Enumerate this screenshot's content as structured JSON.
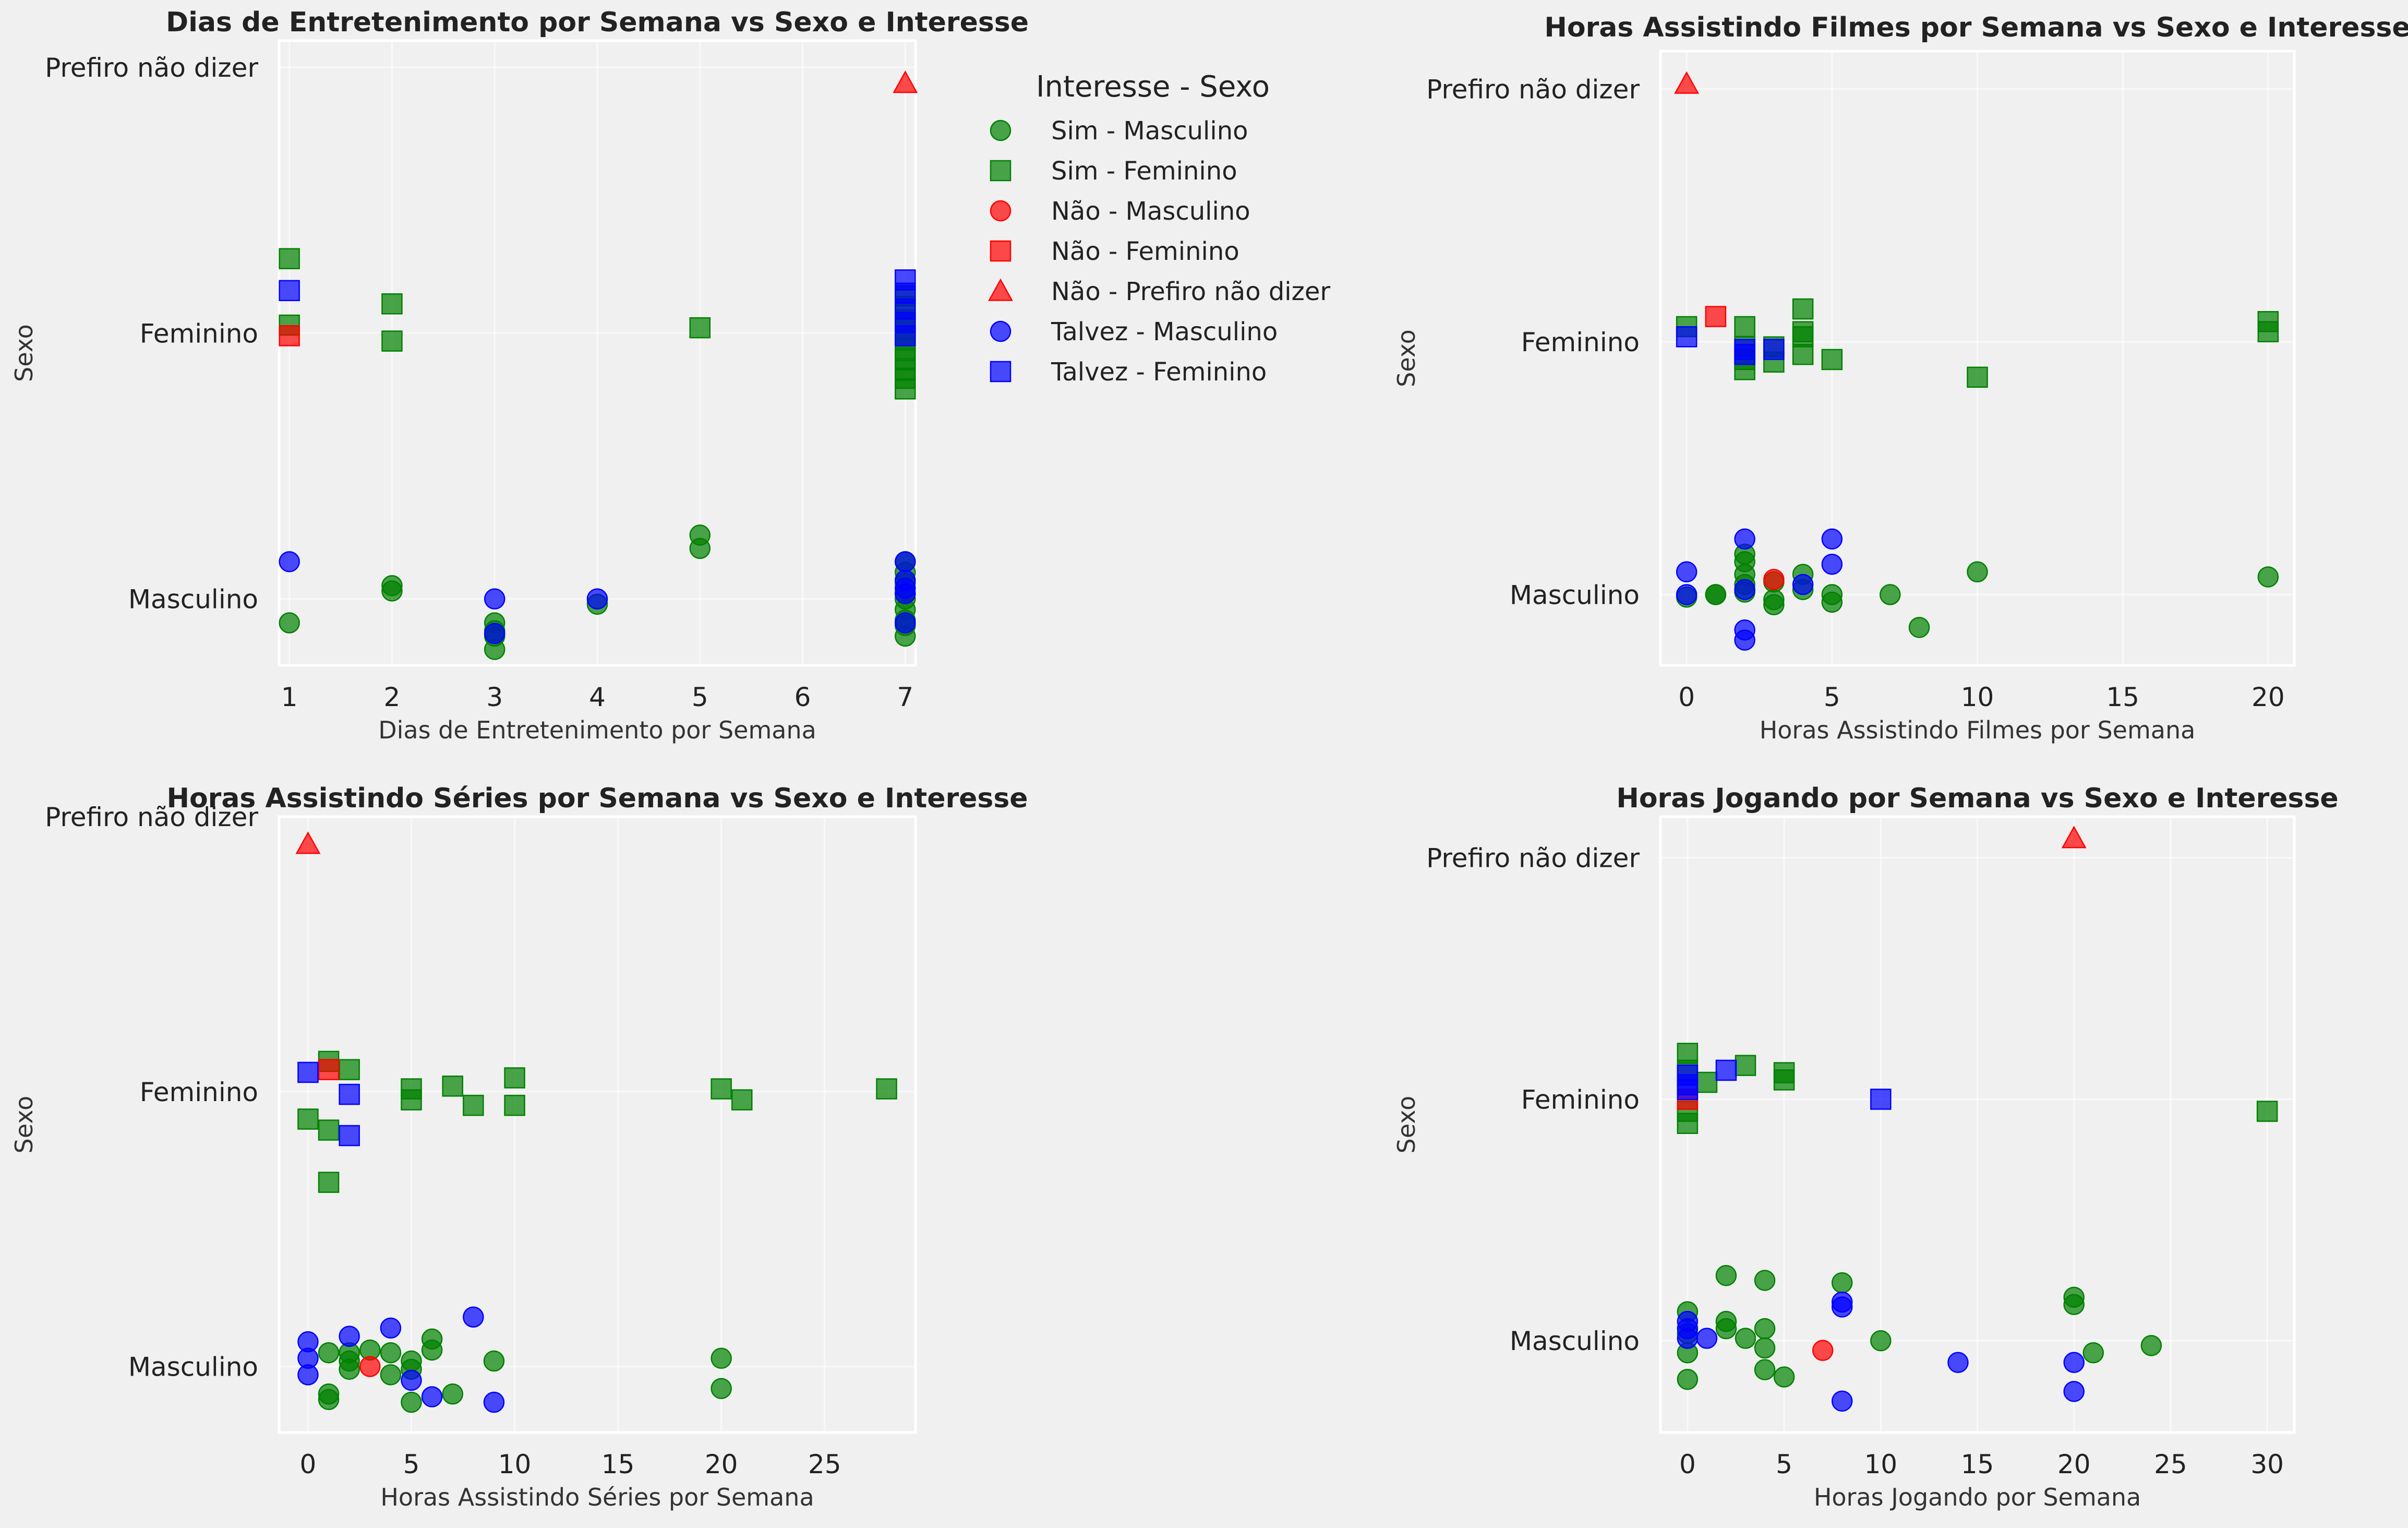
{
  "legend": {
    "title": "Interesse - Sexo",
    "entries": [
      {
        "label": "Sim - Masculino",
        "color": "#008000",
        "marker": "circle"
      },
      {
        "label": "Sim - Feminino",
        "color": "#008000",
        "marker": "square"
      },
      {
        "label": "Não - Masculino",
        "color": "#ff0000",
        "marker": "circle"
      },
      {
        "label": "Não - Feminino",
        "color": "#ff0000",
        "marker": "square"
      },
      {
        "label": "Não - Prefiro não dizer",
        "color": "#ff0000",
        "marker": "triangle"
      },
      {
        "label": "Talvez - Masculino",
        "color": "#0000ff",
        "marker": "circle"
      },
      {
        "label": "Talvez - Feminino",
        "color": "#0000ff",
        "marker": "square"
      }
    ]
  },
  "chart_data": [
    {
      "type": "scatter",
      "title": "Dias de Entretenimento por Semana vs Sexo e Interesse",
      "xlabel": "Dias de Entretenimento por Semana",
      "ylabel": "Sexo",
      "xlim": [
        0.9,
        7.1
      ],
      "xticks": [
        1,
        2,
        3,
        4,
        5,
        6,
        7
      ],
      "yticks": [
        "Masculino",
        "Feminino",
        "Prefiro não dizer"
      ],
      "ylim": [
        -0.25,
        2.1
      ],
      "grid": true,
      "legend_position": "outside-right",
      "series": [
        {
          "name": "Sim - Masculino",
          "points": [
            [
              1,
              -0.09
            ],
            [
              2,
              0.05
            ],
            [
              2,
              0.03
            ],
            [
              3,
              -0.09
            ],
            [
              3,
              -0.14
            ],
            [
              3,
              -0.19
            ],
            [
              3,
              -0.12
            ],
            [
              4,
              -0.02
            ],
            [
              5,
              0.24
            ],
            [
              5,
              0.19
            ],
            [
              7,
              0.14
            ],
            [
              7,
              0.1
            ],
            [
              7,
              0.06
            ],
            [
              7,
              0.02
            ],
            [
              7,
              0
            ],
            [
              7,
              -0.04
            ],
            [
              7,
              -0.08
            ],
            [
              7,
              -0.1
            ],
            [
              7,
              -0.14
            ]
          ]
        },
        {
          "name": "Sim - Feminino",
          "points": [
            [
              1,
              1.28
            ],
            [
              1,
              1.03
            ],
            [
              2,
              1.11
            ],
            [
              2,
              0.97
            ],
            [
              5,
              1.02
            ],
            [
              7,
              1.14
            ],
            [
              7,
              1.1
            ],
            [
              7,
              1.05
            ],
            [
              7,
              1.02
            ],
            [
              7,
              0.98
            ],
            [
              7,
              0.94
            ],
            [
              7,
              0.9
            ],
            [
              7,
              0.86
            ],
            [
              7,
              0.83
            ],
            [
              7,
              0.79
            ]
          ]
        },
        {
          "name": "Não - Masculino",
          "points": []
        },
        {
          "name": "Não - Feminino",
          "points": [
            [
              1,
              0.99
            ]
          ]
        },
        {
          "name": "Não - Prefiro não dizer",
          "points": [
            [
              7,
              1.94
            ]
          ]
        },
        {
          "name": "Talvez - Masculino",
          "points": [
            [
              1,
              0.14
            ],
            [
              3,
              0
            ],
            [
              3,
              -0.13
            ],
            [
              4,
              0
            ],
            [
              7,
              0.14
            ],
            [
              7,
              0.07
            ],
            [
              7,
              0.04
            ],
            [
              7,
              0.02
            ],
            [
              7,
              -0.09
            ]
          ]
        },
        {
          "name": "Talvez - Feminino",
          "points": [
            [
              1,
              1.16
            ],
            [
              7,
              1.2
            ],
            [
              7,
              1.15
            ],
            [
              7,
              1.09
            ],
            [
              7,
              1.04
            ],
            [
              7,
              0.99
            ]
          ]
        }
      ]
    },
    {
      "type": "scatter",
      "title": "Horas Assistindo Filmes por Semana vs Sexo e Interesse",
      "xlabel": "Horas Assistindo Filmes por Semana",
      "ylabel": "Sexo",
      "xlim": [
        -0.9,
        20.9
      ],
      "xticks": [
        0,
        5,
        10,
        15,
        20
      ],
      "yticks": [
        "Masculino",
        "Feminino",
        "Prefiro não dizer"
      ],
      "ylim": [
        -0.28,
        2.15
      ],
      "grid": true,
      "series": [
        {
          "name": "Sim - Masculino",
          "points": [
            [
              0,
              -0.01
            ],
            [
              1,
              0
            ],
            [
              1,
              0
            ],
            [
              2,
              0.16
            ],
            [
              2,
              0.13
            ],
            [
              2,
              0.08
            ],
            [
              2,
              0.04
            ],
            [
              2,
              0.01
            ],
            [
              3,
              0.05
            ],
            [
              3,
              -0.02
            ],
            [
              3,
              -0.04
            ],
            [
              4,
              0.08
            ],
            [
              4,
              0.02
            ],
            [
              5,
              0
            ],
            [
              5,
              -0.03
            ],
            [
              7,
              0
            ],
            [
              8,
              -0.13
            ],
            [
              10,
              0.09
            ],
            [
              20,
              0.07
            ]
          ]
        },
        {
          "name": "Sim - Feminino",
          "points": [
            [
              0,
              1.06
            ],
            [
              2,
              1.06
            ],
            [
              2,
              0.98
            ],
            [
              2,
              0.93
            ],
            [
              2,
              0.89
            ],
            [
              3,
              0.98
            ],
            [
              3,
              0.92
            ],
            [
              4,
              1.13
            ],
            [
              4,
              1.04
            ],
            [
              4,
              1.02
            ],
            [
              4,
              0.95
            ],
            [
              5,
              0.93
            ],
            [
              10,
              0.86
            ],
            [
              20,
              1.08
            ],
            [
              20,
              1.04
            ]
          ]
        },
        {
          "name": "Não - Masculino",
          "points": [
            [
              3,
              0.06
            ]
          ]
        },
        {
          "name": "Não - Feminino",
          "points": [
            [
              1,
              1.1
            ]
          ]
        },
        {
          "name": "Não - Prefiro não dizer",
          "points": [
            [
              0,
              2.02
            ]
          ]
        },
        {
          "name": "Talvez - Masculino",
          "points": [
            [
              0,
              0.09
            ],
            [
              0,
              0
            ],
            [
              2,
              0.22
            ],
            [
              2,
              0.02
            ],
            [
              2,
              -0.14
            ],
            [
              2,
              -0.18
            ],
            [
              4,
              0.04
            ],
            [
              5,
              0.22
            ],
            [
              5,
              0.12
            ]
          ]
        },
        {
          "name": "Talvez - Feminino",
          "points": [
            [
              0,
              1.02
            ],
            [
              2,
              0.97
            ],
            [
              2,
              0.95
            ],
            [
              3,
              0.97
            ]
          ]
        }
      ]
    },
    {
      "type": "scatter",
      "title": "Horas Assistindo Séries por Semana vs Sexo e Interesse",
      "xlabel": "Horas Assistindo Séries por Semana",
      "ylabel": "Sexo",
      "xlim": [
        -1.4,
        29.4
      ],
      "xticks": [
        0,
        5,
        10,
        15,
        20,
        25
      ],
      "yticks": [
        "Masculino",
        "Feminino",
        "Prefiro não dizer"
      ],
      "ylim": [
        -0.24,
        2.0
      ],
      "grid": true,
      "series": [
        {
          "name": "Sim - Masculino",
          "points": [
            [
              1,
              0.05
            ],
            [
              1,
              -0.1
            ],
            [
              1,
              -0.12
            ],
            [
              2,
              0.05
            ],
            [
              2,
              0.02
            ],
            [
              2,
              -0.01
            ],
            [
              3,
              0.06
            ],
            [
              4,
              0.05
            ],
            [
              4,
              -0.03
            ],
            [
              5,
              0.02
            ],
            [
              5,
              -0.01
            ],
            [
              5,
              -0.13
            ],
            [
              6,
              0.06
            ],
            [
              6,
              0.1
            ],
            [
              7,
              -0.1
            ],
            [
              9,
              0.02
            ],
            [
              20,
              0.03
            ],
            [
              20,
              -0.08
            ]
          ]
        },
        {
          "name": "Sim - Feminino",
          "points": [
            [
              0,
              0.9
            ],
            [
              1,
              1.11
            ],
            [
              1,
              0.86
            ],
            [
              1,
              0.67
            ],
            [
              2,
              1.08
            ],
            [
              5,
              1.01
            ],
            [
              5,
              0.97
            ],
            [
              7,
              1.02
            ],
            [
              8,
              0.95
            ],
            [
              10,
              1.05
            ],
            [
              10,
              0.95
            ],
            [
              20,
              1.01
            ],
            [
              21,
              0.97
            ],
            [
              28,
              1.01
            ]
          ]
        },
        {
          "name": "Não - Masculino",
          "points": [
            [
              3,
              0
            ]
          ]
        },
        {
          "name": "Não - Feminino",
          "points": [
            [
              1,
              1.08
            ]
          ]
        },
        {
          "name": "Não - Prefiro não dizer",
          "points": [
            [
              0,
              1.9
            ]
          ]
        },
        {
          "name": "Talvez - Masculino",
          "points": [
            [
              0,
              0.09
            ],
            [
              0,
              0.03
            ],
            [
              0,
              -0.03
            ],
            [
              2,
              0.11
            ],
            [
              4,
              0.14
            ],
            [
              5,
              -0.05
            ],
            [
              6,
              -0.11
            ],
            [
              8,
              0.18
            ],
            [
              9,
              -0.13
            ]
          ]
        },
        {
          "name": "Talvez - Feminino",
          "points": [
            [
              0,
              1.07
            ],
            [
              2,
              0.99
            ],
            [
              2,
              0.84
            ]
          ]
        }
      ]
    },
    {
      "type": "scatter",
      "title": "Horas Jogando por Semana vs Sexo e Interesse",
      "xlabel": "Horas Jogando por Semana",
      "ylabel": "Sexo",
      "xlim": [
        -1.4,
        31.4
      ],
      "xticks": [
        0,
        5,
        10,
        15,
        20,
        25,
        30
      ],
      "yticks": [
        "Masculino",
        "Feminino",
        "Prefiro não dizer"
      ],
      "ylim": [
        -0.38,
        2.17
      ],
      "grid": true,
      "series": [
        {
          "name": "Sim - Masculino",
          "points": [
            [
              0,
              0.12
            ],
            [
              0,
              0.03
            ],
            [
              0,
              -0.05
            ],
            [
              0,
              -0.16
            ],
            [
              2,
              0.27
            ],
            [
              2,
              0.08
            ],
            [
              2,
              0.05
            ],
            [
              3,
              0.01
            ],
            [
              4,
              0.25
            ],
            [
              4,
              0.05
            ],
            [
              4,
              -0.03
            ],
            [
              4,
              -0.12
            ],
            [
              5,
              -0.15
            ],
            [
              8,
              0.24
            ],
            [
              10,
              0
            ],
            [
              20,
              0.18
            ],
            [
              20,
              0.15
            ],
            [
              21,
              -0.05
            ],
            [
              24,
              -0.02
            ]
          ]
        },
        {
          "name": "Sim - Feminino",
          "points": [
            [
              0,
              1.19
            ],
            [
              0,
              1.12
            ],
            [
              0,
              0.95
            ],
            [
              0,
              0.9
            ],
            [
              1,
              1.07
            ],
            [
              3,
              1.14
            ],
            [
              5,
              1.11
            ],
            [
              5,
              1.08
            ],
            [
              30,
              0.95
            ]
          ]
        },
        {
          "name": "Não - Masculino",
          "points": [
            [
              7,
              -0.04
            ]
          ]
        },
        {
          "name": "Não - Feminino",
          "points": [
            [
              0,
              1
            ]
          ]
        },
        {
          "name": "Não - Prefiro não dizer",
          "points": [
            [
              20,
              2.08
            ]
          ]
        },
        {
          "name": "Talvez - Masculino",
          "points": [
            [
              0,
              0.08
            ],
            [
              0,
              0.05
            ],
            [
              0,
              0.01
            ],
            [
              1,
              0.01
            ],
            [
              8,
              0.16
            ],
            [
              8,
              0.14
            ],
            [
              8,
              -0.25
            ],
            [
              14,
              -0.09
            ],
            [
              20,
              -0.09
            ],
            [
              20,
              -0.21
            ]
          ]
        },
        {
          "name": "Talvez - Feminino",
          "points": [
            [
              0,
              1.1
            ],
            [
              0,
              1.06
            ],
            [
              0,
              1.04
            ],
            [
              2,
              1.12
            ],
            [
              10,
              1
            ]
          ]
        }
      ]
    }
  ]
}
